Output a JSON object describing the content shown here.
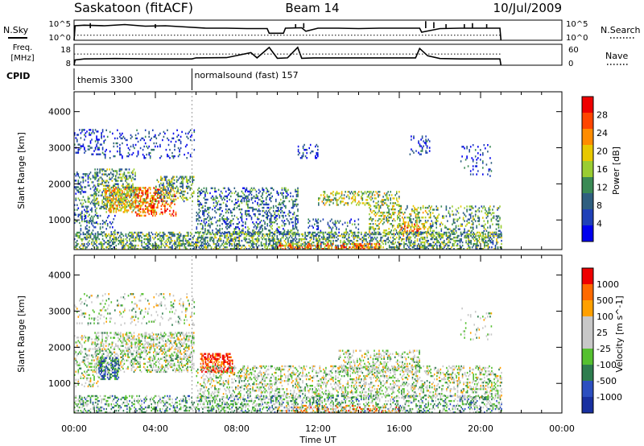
{
  "header": {
    "station": "Saskatoon (fitACF)",
    "beam": "Beam 14",
    "date": "10/Jul/2009"
  },
  "side_labels": {
    "nsky": "N.Sky",
    "freq_line1": "Freq.",
    "freq_line2": "[MHz]",
    "cpid": "CPID",
    "nsearch": "N.Search",
    "nave": "Nave"
  },
  "cpid_segments": [
    {
      "label": "themis 3300",
      "start_hour": 0.0
    },
    {
      "label": "normalsound (fast) 157",
      "start_hour": 5.8
    }
  ],
  "colors": {
    "power_scale": [
      "#0000ee",
      "#1f40b8",
      "#2f5f80",
      "#3a8a55",
      "#9acd32",
      "#e8c800",
      "#ff8c00",
      "#ff4500",
      "#ee0000"
    ],
    "velocity_scale": [
      "#1830a0",
      "#2c4fc0",
      "#2e7d4f",
      "#55c030",
      "#c8c8c8",
      "#c8c8c8",
      "#ffa000",
      "#ff6a00",
      "#ee0000"
    ]
  },
  "chart_data": [
    {
      "id": "nsky",
      "type": "line",
      "ylabel": "N.Sky",
      "yticks_left": [
        "10^5",
        "10^0"
      ],
      "yticks_right": [
        "10^5",
        "10^0"
      ],
      "x": [
        0,
        0.05,
        0.5,
        1.5,
        2.5,
        3.5,
        4.5,
        5.5,
        6.5,
        7.5,
        8.5,
        9.5,
        9.6,
        10.3,
        10.4,
        11.2,
        11.4,
        12.0,
        13.0,
        14.0,
        15.0,
        16.0,
        17.0,
        17.1,
        18.0,
        19.0,
        20.0,
        20.95,
        21.0
      ],
      "y": [
        0.0,
        0.72,
        0.75,
        0.72,
        0.78,
        0.7,
        0.72,
        0.66,
        0.6,
        0.6,
        0.58,
        0.58,
        0.35,
        0.35,
        0.6,
        0.62,
        0.45,
        0.6,
        0.6,
        0.58,
        0.6,
        0.6,
        0.6,
        0.4,
        0.58,
        0.6,
        0.6,
        0.6,
        0.0
      ],
      "spikes": [
        [
          0.8,
          0.85
        ],
        [
          4.0,
          0.8
        ],
        [
          10.9,
          0.8
        ],
        [
          11.3,
          0.85
        ],
        [
          17.3,
          0.95
        ],
        [
          17.7,
          0.9
        ],
        [
          18.3,
          0.8
        ],
        [
          19.2,
          0.8
        ],
        [
          19.6,
          0.85
        ],
        [
          20.3,
          0.8
        ]
      ]
    },
    {
      "id": "nsearch",
      "type": "line",
      "ylabel": "N.Search",
      "yticks_right": [
        "10^5",
        "10^0"
      ],
      "x": [
        0,
        21
      ],
      "y": [
        0.25,
        0.25
      ]
    },
    {
      "id": "freq",
      "type": "line",
      "ylabel": "Freq. [MHz]",
      "ylim": [
        8,
        18
      ],
      "yticks": [
        18,
        8
      ],
      "x": [
        0,
        0.05,
        0.5,
        2.0,
        4.0,
        5.8,
        6.0,
        7.5,
        8.7,
        9.0,
        9.6,
        10.0,
        10.5,
        11.0,
        11.2,
        11.8,
        12.0,
        14.0,
        16.8,
        17.0,
        17.4,
        18.0,
        19.0,
        20.95,
        21.0
      ],
      "y": [
        8.0,
        10.5,
        11.0,
        11.2,
        11.0,
        11.0,
        11.5,
        11.6,
        14.0,
        11.5,
        16.5,
        11.3,
        11.5,
        16.5,
        11.3,
        11.5,
        11.5,
        11.5,
        11.5,
        16.0,
        12.5,
        11.2,
        11.0,
        11.0,
        8.0
      ]
    },
    {
      "id": "nave",
      "type": "line",
      "ylabel": "Nave",
      "ylim": [
        0,
        60
      ],
      "yticks_right": [
        60,
        0
      ],
      "x": [
        0,
        21
      ],
      "y": [
        32,
        32
      ]
    },
    {
      "id": "power",
      "type": "heatmap",
      "ylabel": "Slant Range [km]",
      "ylim": [
        180,
        4550
      ],
      "yticks": [
        1000,
        2000,
        3000,
        4000
      ],
      "colorbar_label": "Power [dB]",
      "colorbar_ticks": [
        4,
        8,
        12,
        16,
        20,
        24,
        28
      ],
      "colorbar_range": [
        0,
        32
      ],
      "regions": [
        {
          "x": [
            0.0,
            1.5
          ],
          "y": [
            2800,
            3500
          ],
          "level": 4,
          "density": 0.28
        },
        {
          "x": [
            1.5,
            5.9
          ],
          "y": [
            2700,
            3500
          ],
          "level": 4,
          "density": 0.12
        },
        {
          "x": [
            0.0,
            1.2
          ],
          "y": [
            900,
            2300
          ],
          "level": 8,
          "density": 0.3
        },
        {
          "x": [
            1.0,
            3.0
          ],
          "y": [
            1300,
            2400
          ],
          "level": 12,
          "density": 0.35
        },
        {
          "x": [
            1.5,
            4.0
          ],
          "y": [
            1200,
            1900
          ],
          "level": 20,
          "density": 0.45
        },
        {
          "x": [
            3.0,
            5.0
          ],
          "y": [
            1100,
            1900
          ],
          "level": 26,
          "density": 0.3
        },
        {
          "x": [
            4.0,
            5.9
          ],
          "y": [
            1500,
            2200
          ],
          "level": 12,
          "density": 0.35
        },
        {
          "x": [
            0.3,
            2.0
          ],
          "y": [
            600,
            1100
          ],
          "level": 8,
          "density": 0.15
        },
        {
          "x": [
            6.0,
            11.0
          ],
          "y": [
            600,
            1900
          ],
          "level": 8,
          "density": 0.3
        },
        {
          "x": [
            11.5,
            14.0
          ],
          "y": [
            500,
            1000
          ],
          "level": 8,
          "density": 0.2
        },
        {
          "x": [
            12.0,
            16.0
          ],
          "y": [
            1400,
            1800
          ],
          "level": 14,
          "density": 0.32
        },
        {
          "x": [
            14.5,
            17.5
          ],
          "y": [
            600,
            1400
          ],
          "level": 16,
          "density": 0.33
        },
        {
          "x": [
            16.0,
            17.0
          ],
          "y": [
            500,
            900
          ],
          "level": 24,
          "density": 0.35
        },
        {
          "x": [
            17.5,
            21.0
          ],
          "y": [
            500,
            1400
          ],
          "level": 10,
          "density": 0.22
        },
        {
          "x": [
            0.0,
            21.0
          ],
          "y": [
            180,
            650
          ],
          "level": 10,
          "density": 0.45
        },
        {
          "x": [
            10.0,
            15.0
          ],
          "y": [
            180,
            350
          ],
          "level": 22,
          "density": 0.4
        },
        {
          "x": [
            11.0,
            12.0
          ],
          "y": [
            2700,
            3100
          ],
          "level": 4,
          "density": 0.2
        },
        {
          "x": [
            16.5,
            17.5
          ],
          "y": [
            2800,
            3300
          ],
          "level": 4,
          "density": 0.2
        },
        {
          "x": [
            19.0,
            20.5
          ],
          "y": [
            2200,
            3100
          ],
          "level": 4,
          "density": 0.12
        }
      ]
    },
    {
      "id": "velocity",
      "type": "heatmap",
      "ylabel": "Slant Range [km]",
      "ylim": [
        180,
        4550
      ],
      "yticks": [
        1000,
        2000,
        3000,
        4000
      ],
      "colorbar_label": "Velocity [m s^-1]",
      "colorbar_ticks": [
        1000,
        500,
        100,
        25,
        -25,
        -100,
        -500,
        -1000
      ],
      "regions": [
        {
          "x": [
            0.0,
            5.9
          ],
          "y": [
            2600,
            3500
          ],
          "level": 4,
          "density": 0.12
        },
        {
          "x": [
            0.0,
            1.2
          ],
          "y": [
            900,
            2300
          ],
          "level": 4,
          "density": 0.25
        },
        {
          "x": [
            1.0,
            5.9
          ],
          "y": [
            1300,
            2400
          ],
          "level": 4,
          "density": 0.4
        },
        {
          "x": [
            1.2,
            2.2
          ],
          "y": [
            1100,
            1700
          ],
          "level": 2,
          "density": 0.5
        },
        {
          "x": [
            6.2,
            7.8
          ],
          "y": [
            1300,
            1800
          ],
          "level": 8,
          "density": 0.55
        },
        {
          "x": [
            6.0,
            21.0
          ],
          "y": [
            600,
            1500
          ],
          "level": 4,
          "density": 0.32
        },
        {
          "x": [
            0.0,
            21.0
          ],
          "y": [
            180,
            650
          ],
          "level": 3,
          "density": 0.35
        },
        {
          "x": [
            10.0,
            16.0
          ],
          "y": [
            180,
            400
          ],
          "level": 6,
          "density": 0.25
        },
        {
          "x": [
            13.0,
            17.0
          ],
          "y": [
            1300,
            1900
          ],
          "level": 4,
          "density": 0.3
        },
        {
          "x": [
            19.0,
            20.5
          ],
          "y": [
            2200,
            3100
          ],
          "level": 4,
          "density": 0.08
        }
      ]
    }
  ],
  "xaxis": {
    "label": "Time UT",
    "xlim": [
      0,
      24
    ],
    "tick_labels": [
      "00:00",
      "04:00",
      "08:00",
      "12:00",
      "16:00",
      "20:00",
      "00:00"
    ]
  }
}
